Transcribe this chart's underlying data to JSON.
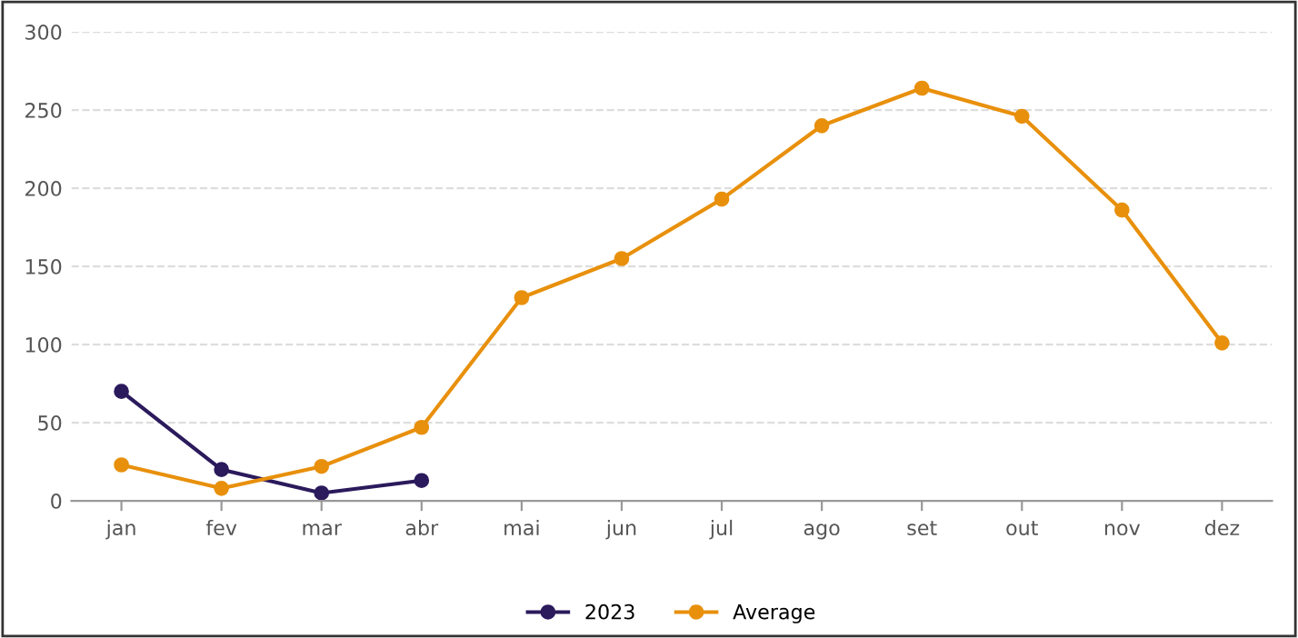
{
  "chart_data": {
    "type": "line",
    "categories": [
      "jan",
      "fev",
      "mar",
      "abr",
      "mai",
      "jun",
      "jul",
      "ago",
      "set",
      "out",
      "nov",
      "dez"
    ],
    "series": [
      {
        "name": "2023",
        "color": "#2b1a5c",
        "values": [
          70,
          20,
          5,
          13,
          null,
          null,
          null,
          null,
          null,
          null,
          null,
          null
        ]
      },
      {
        "name": "Average",
        "color": "#e8900c",
        "values": [
          23,
          8,
          22,
          47,
          130,
          155,
          193,
          240,
          264,
          246,
          186,
          101
        ]
      }
    ],
    "ylim": [
      0,
      300
    ],
    "yticks": [
      0,
      50,
      100,
      150,
      200,
      250,
      300
    ],
    "grid": "y",
    "legend": "bottom",
    "marker": "circle",
    "line_style": "solid"
  }
}
